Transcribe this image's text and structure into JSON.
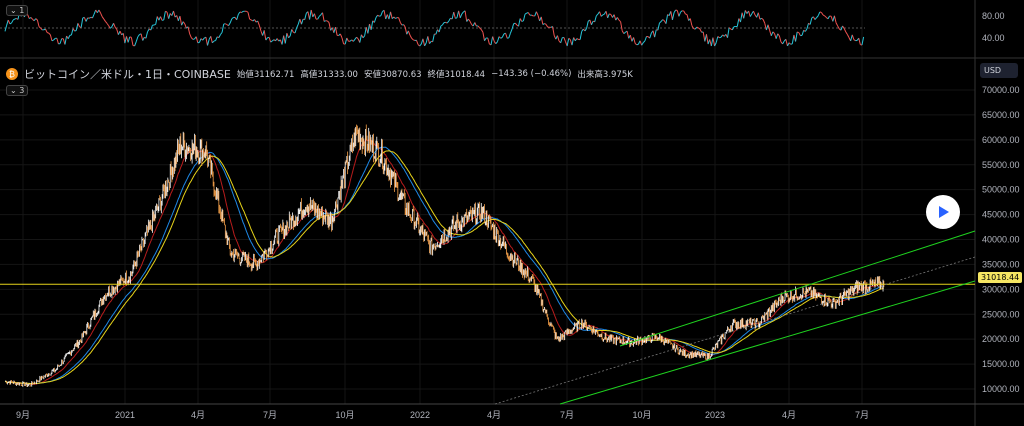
{
  "oscillator": {
    "toggle": "1",
    "ticks": [
      "80.00",
      "40.00"
    ],
    "colors": {
      "up": "#26c6da",
      "down": "#ef5350"
    }
  },
  "legend": {
    "symbol_icon": "bitcoin-icon",
    "symbol": "ビットコイン／米ドル・1日・COINBASE",
    "open": "始値31162.71",
    "high": "高値31333.00",
    "low": "安値30870.63",
    "close": "終値31018.44",
    "change": "−143.36 (−0.46%)",
    "volume": "出来高3.975K",
    "indicators_toggle": "3"
  },
  "currency": "USD",
  "last_price": "31018.44",
  "play_icon": "play-icon",
  "chart_data": {
    "type": "candlestick",
    "title": "ビットコイン／米ドル・1日・COINBASE",
    "ylim": [
      6000,
      72000
    ],
    "y_ticks": [
      "10000.00",
      "15000.00",
      "20000.00",
      "25000.00",
      "30000.00",
      "35000.00",
      "40000.00",
      "45000.00",
      "50000.00",
      "55000.00",
      "60000.00",
      "65000.00",
      "70000.00"
    ],
    "x_ticks": [
      "9月",
      "2021",
      "4月",
      "7月",
      "10月",
      "2022",
      "4月",
      "7月",
      "10月",
      "2023",
      "4月",
      "7月"
    ],
    "monthly_close_approx": {
      "months": [
        "2020-08",
        "2020-09",
        "2020-10",
        "2020-11",
        "2020-12",
        "2021-01",
        "2021-02",
        "2021-03",
        "2021-04",
        "2021-05",
        "2021-06",
        "2021-07",
        "2021-08",
        "2021-09",
        "2021-10",
        "2021-11",
        "2021-12",
        "2022-01",
        "2022-02",
        "2022-03",
        "2022-04",
        "2022-05",
        "2022-06",
        "2022-07",
        "2022-08",
        "2022-09",
        "2022-10",
        "2022-11",
        "2022-12",
        "2023-01",
        "2023-02",
        "2023-03",
        "2023-04",
        "2023-05",
        "2023-06",
        "2023-07"
      ],
      "values": [
        11500,
        10800,
        13800,
        19700,
        29000,
        33000,
        45000,
        58800,
        57700,
        37300,
        35000,
        41500,
        47100,
        43800,
        61300,
        57000,
        46200,
        38500,
        43200,
        45500,
        37700,
        31800,
        19900,
        23300,
        20000,
        19400,
        20500,
        17200,
        16500,
        23100,
        23100,
        28500,
        29300,
        27200,
        30500,
        31018
      ]
    },
    "horizontal_line": 31018.44,
    "colors": {
      "candle": "#f5a04a",
      "ma_fast": "#b71c1c",
      "ma_mid": "#1e88e5",
      "ma_slow": "#e6d31a",
      "channel": "#1fd21f",
      "hline": "#e6d31a"
    }
  }
}
